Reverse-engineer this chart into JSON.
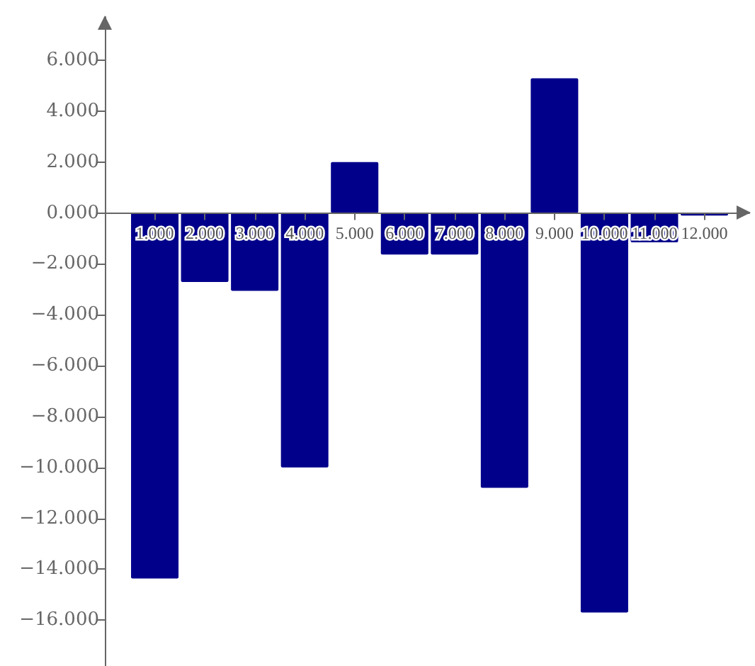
{
  "chart_data": {
    "type": "bar",
    "x": [
      1,
      2,
      3,
      4,
      5,
      6,
      7,
      8,
      9,
      10,
      11,
      12
    ],
    "values": [
      -14.36,
      -2.71,
      -3.06,
      -10.0,
      2.0,
      -1.63,
      -1.63,
      -10.8,
      5.29,
      -15.7,
      -1.15,
      -0.1
    ],
    "color": "#00008b",
    "xlim": [
      0,
      12.9
    ],
    "xticks": [
      {
        "value": 1,
        "label": "1.000"
      },
      {
        "value": 2,
        "label": "2.000"
      },
      {
        "value": 3,
        "label": "3.000"
      },
      {
        "value": 4,
        "label": "4.000"
      },
      {
        "value": 5,
        "label": "5.000"
      },
      {
        "value": 6,
        "label": "6.000"
      },
      {
        "value": 7,
        "label": "7.000"
      },
      {
        "value": 8,
        "label": "8.000"
      },
      {
        "value": 9,
        "label": "9.000"
      },
      {
        "value": 10,
        "label": "10.000"
      },
      {
        "value": 11,
        "label": "11.000"
      },
      {
        "value": 12,
        "label": "12.000"
      }
    ],
    "ylim": [
      -17.8,
      7.7
    ],
    "yticks": [
      {
        "value": -16,
        "label": "−16.000"
      },
      {
        "value": -14,
        "label": "−14.000"
      },
      {
        "value": -12,
        "label": "−12.000"
      },
      {
        "value": -10,
        "label": "−10.000"
      },
      {
        "value": -8,
        "label": "−8.000"
      },
      {
        "value": -6,
        "label": "−6.000"
      },
      {
        "value": -4,
        "label": "−4.000"
      },
      {
        "value": -2,
        "label": "−2.000"
      },
      {
        "value": 0,
        "label": "0.000"
      },
      {
        "value": 2,
        "label": "2.000"
      },
      {
        "value": 4,
        "label": "4.000"
      },
      {
        "value": 6,
        "label": "6.000"
      }
    ]
  }
}
